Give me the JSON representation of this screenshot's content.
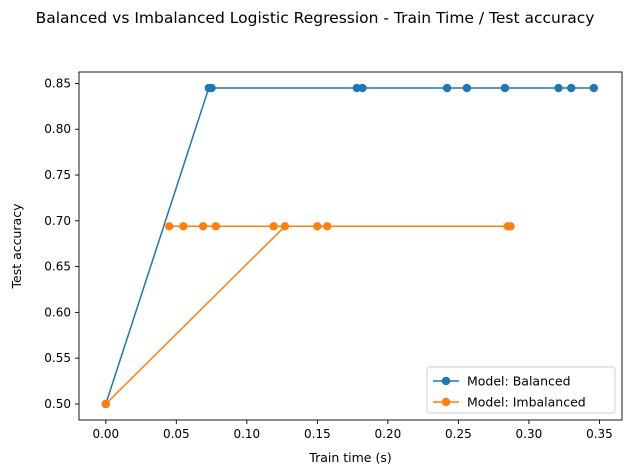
{
  "chart_data": {
    "type": "line",
    "title": "Balanced vs Imbalanced Logistic Regression - Train Time / Test accuracy",
    "xlabel": "Train time (s)",
    "ylabel": "Test accuracy",
    "xlim": [
      -0.019,
      0.366
    ],
    "ylim": [
      0.4825,
      0.8625
    ],
    "xticks": [
      0.0,
      0.05,
      0.1,
      0.15,
      0.2,
      0.25,
      0.3,
      0.35
    ],
    "xtick_labels": [
      "0.00",
      "0.05",
      "0.10",
      "0.15",
      "0.20",
      "0.25",
      "0.30",
      "0.35"
    ],
    "yticks": [
      0.5,
      0.55,
      0.6,
      0.65,
      0.7,
      0.75,
      0.8,
      0.85
    ],
    "ytick_labels": [
      "0.50",
      "0.55",
      "0.60",
      "0.65",
      "0.70",
      "0.75",
      "0.80",
      "0.85"
    ],
    "grid": false,
    "legend_position": "bottom-right",
    "series": [
      {
        "name": "Model: Balanced",
        "color": "#1f77b4",
        "x": [
          0.0,
          0.073,
          0.075,
          0.178,
          0.182,
          0.242,
          0.256,
          0.283,
          0.321,
          0.33,
          0.346
        ],
        "y": [
          0.5,
          0.845,
          0.845,
          0.845,
          0.845,
          0.845,
          0.845,
          0.845,
          0.845,
          0.845,
          0.845
        ]
      },
      {
        "name": "Model: Imbalanced",
        "color": "#ff7f0e",
        "x": [
          0.0,
          0.127,
          0.045,
          0.055,
          0.069,
          0.078,
          0.119,
          0.15,
          0.157,
          0.285,
          0.287
        ],
        "y": [
          0.5,
          0.694,
          0.694,
          0.694,
          0.694,
          0.694,
          0.694,
          0.694,
          0.694,
          0.694,
          0.694
        ]
      }
    ]
  }
}
